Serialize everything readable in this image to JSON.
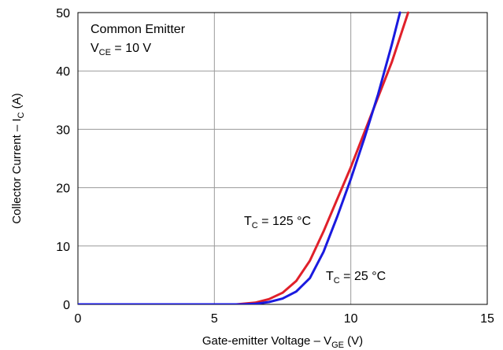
{
  "chart_data": {
    "type": "line",
    "title": "",
    "xlabel": {
      "main": "Gate-emitter Voltage – V",
      "sub": "GE",
      "unit": " (V)"
    },
    "ylabel": {
      "main": "Collector Current – I",
      "sub": "C",
      "unit": " (A)"
    },
    "xlim": [
      0,
      15
    ],
    "ylim": [
      0,
      50
    ],
    "xticks": [
      0,
      5,
      10,
      15
    ],
    "yticks": [
      0,
      10,
      20,
      30,
      40,
      50
    ],
    "grid": true,
    "annotations": {
      "condition_line1": "Common Emitter",
      "condition_line2": {
        "main": "V",
        "sub": "CE",
        "rest": " = 10 V"
      },
      "label_125": {
        "main": "T",
        "sub": "C",
        "rest": " = 125 °C"
      },
      "label_25": {
        "main": "T",
        "sub": "C",
        "rest": " = 25 °C"
      }
    },
    "series": [
      {
        "name": "T_C = 25 °C",
        "color": "#1a1adf",
        "x": [
          0,
          6.0,
          6.5,
          7.0,
          7.5,
          8.0,
          8.5,
          9.0,
          9.5,
          10.0,
          10.5,
          11.0,
          11.5,
          11.8
        ],
        "y": [
          0,
          0,
          0.1,
          0.4,
          1.0,
          2.2,
          4.5,
          9.0,
          15.0,
          21.5,
          28.5,
          36.0,
          44.5,
          50.0
        ]
      },
      {
        "name": "T_C = 125 °C",
        "color": "#e0202a",
        "x": [
          0,
          5.8,
          6.5,
          7.0,
          7.5,
          8.0,
          8.5,
          9.0,
          9.5,
          10.0,
          10.5,
          11.0,
          11.5,
          12.1
        ],
        "y": [
          0,
          0,
          0.3,
          0.9,
          2.0,
          4.0,
          7.5,
          12.5,
          18.0,
          23.5,
          29.5,
          35.5,
          41.5,
          50.0
        ]
      }
    ]
  }
}
